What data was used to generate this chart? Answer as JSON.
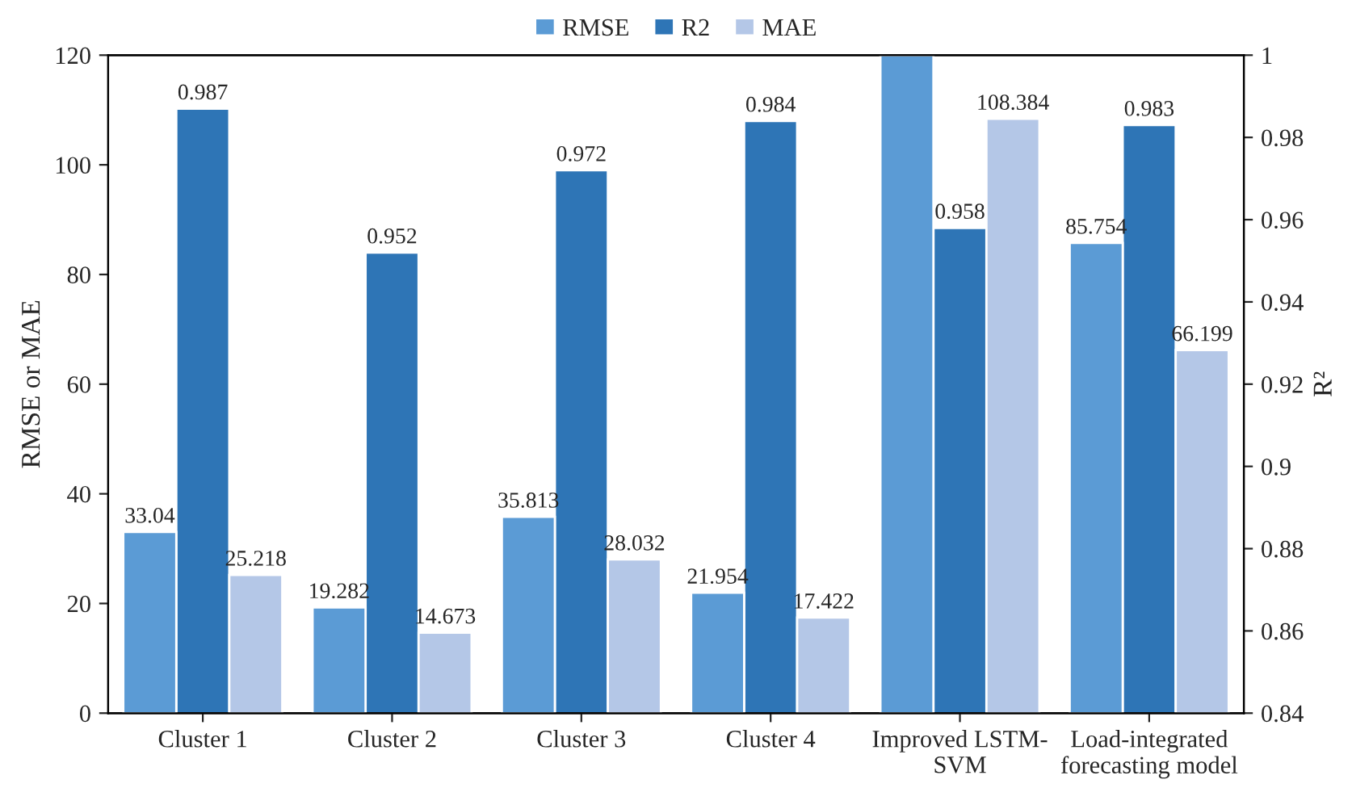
{
  "chart_data": {
    "type": "bar",
    "categories": [
      "Cluster 1",
      "Cluster 2",
      "Cluster 3",
      "Cluster 4",
      "Improved LSTM-\nSVM",
      "Load-integrated\nforecasting model"
    ],
    "series": [
      {
        "name": "RMSE",
        "color": "#5b9bd5",
        "values": [
          33.04,
          19.282,
          35.813,
          21.954,
          120,
          85.754
        ],
        "value_labels": [
          "33.04",
          "19.282",
          "35.813",
          "21.954",
          null,
          "85.754"
        ]
      },
      {
        "name": "R2",
        "color": "#2e75b6",
        "axis": "y2",
        "values": [
          0.987,
          0.952,
          0.972,
          0.984,
          0.958,
          0.983
        ],
        "value_labels": [
          "0.987",
          "0.952",
          "0.972",
          "0.984",
          "0.958",
          "0.983"
        ]
      },
      {
        "name": "MAE",
        "color": "#b4c7e7",
        "values": [
          25.218,
          14.673,
          28.032,
          17.422,
          108.384,
          66.199
        ],
        "value_labels": [
          "25.218",
          "14.673",
          "28.032",
          "17.422",
          "108.384",
          "66.199"
        ]
      }
    ],
    "ylabel": "RMSE or MAE",
    "y2label": "R²",
    "ylim": [
      0,
      120
    ],
    "yticks": [
      0,
      20,
      40,
      60,
      80,
      100,
      120
    ],
    "y2lim": [
      0.84,
      1
    ],
    "y2ticks": [
      0.84,
      0.86,
      0.88,
      0.9,
      0.92,
      0.94,
      0.96,
      0.98,
      {
        "value": 1,
        "label": "1"
      }
    ],
    "grid": false,
    "legend": "top"
  }
}
